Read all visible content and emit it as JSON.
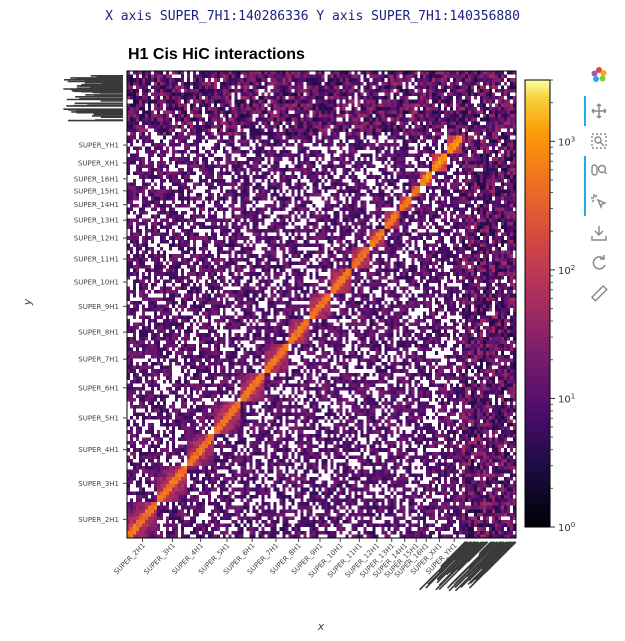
{
  "hover_readout": "X axis SUPER_7H1:140286336 Y axis SUPER_7H1:140356880",
  "title": "H1 Cis HiC interactions",
  "chart_data": {
    "type": "heatmap",
    "title": "H1 Cis HiC interactions",
    "xlabel": "x",
    "ylabel": "y",
    "colormap": "inferno",
    "color_scale": "log",
    "colorbar": {
      "range": [
        1,
        3000
      ],
      "ticks": [
        {
          "label": "10",
          "sup": "0",
          "value": 1
        },
        {
          "label": "10",
          "sup": "1",
          "value": 10
        },
        {
          "label": "10",
          "sup": "2",
          "value": 100
        },
        {
          "label": "10",
          "sup": "3",
          "value": 1000
        }
      ]
    },
    "chromosomes": [
      {
        "name": "SUPER_2H1",
        "size": 0.073
      },
      {
        "name": "SUPER_3H1",
        "size": 0.068
      },
      {
        "name": "SUPER_4H1",
        "size": 0.064
      },
      {
        "name": "SUPER_5H1",
        "size": 0.06
      },
      {
        "name": "SUPER_6H1",
        "size": 0.058
      },
      {
        "name": "SUPER_7H1",
        "size": 0.054
      },
      {
        "name": "SUPER_8H1",
        "size": 0.052
      },
      {
        "name": "SUPER_9H1",
        "size": 0.049
      },
      {
        "name": "SUPER_10H1",
        "size": 0.046
      },
      {
        "name": "SUPER_11H1",
        "size": 0.044
      },
      {
        "name": "SUPER_12H1",
        "size": 0.038
      },
      {
        "name": "SUPER_13H1",
        "size": 0.032
      },
      {
        "name": "SUPER_14H1",
        "size": 0.029
      },
      {
        "name": "SUPER_15H1",
        "size": 0.025
      },
      {
        "name": "SUPER_16H1",
        "size": 0.022
      },
      {
        "name": "SUPER_XH1",
        "size": 0.04
      },
      {
        "name": "SUPER_YH1",
        "size": 0.03
      }
    ],
    "unplaced_scaffold_fraction": 0.13
  },
  "toolbar": {
    "logo": "bokeh-logo-icon",
    "tools": [
      {
        "name": "pan-tool-icon",
        "active": true
      },
      {
        "name": "box-zoom-tool-icon",
        "active": false
      },
      {
        "name": "wheel-zoom-tool-icon",
        "active": true
      },
      {
        "name": "hover-tool-icon",
        "active": true
      },
      {
        "name": "save-tool-icon",
        "active": false
      },
      {
        "name": "reset-tool-icon",
        "active": false
      },
      {
        "name": "ruler-tool-icon",
        "active": false
      }
    ]
  },
  "colors": {
    "readout_text": "#1a237e",
    "toolbar_active": "#26aae1",
    "heatmap_background": "#2b0a45"
  }
}
